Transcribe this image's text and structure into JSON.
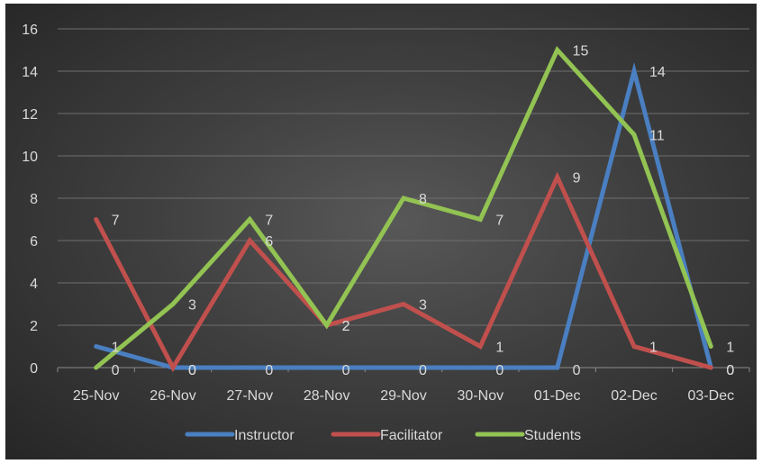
{
  "chart_data": {
    "type": "line",
    "title": "",
    "xlabel": "",
    "ylabel": "",
    "categories": [
      "25-Nov",
      "26-Nov",
      "27-Nov",
      "28-Nov",
      "29-Nov",
      "30-Nov",
      "01-Dec",
      "02-Dec",
      "03-Dec"
    ],
    "ylim": [
      0,
      16
    ],
    "yticks": [
      0,
      2,
      4,
      6,
      8,
      10,
      12,
      14,
      16
    ],
    "grid": true,
    "legend": "bottom",
    "series": [
      {
        "name": "Instructor",
        "color": "#4a7fc1",
        "values": [
          1,
          0,
          0,
          0,
          0,
          0,
          0,
          14,
          0
        ]
      },
      {
        "name": "Facilitator",
        "color": "#c0504d",
        "values": [
          7,
          0,
          6,
          2,
          3,
          1,
          9,
          1,
          0
        ]
      },
      {
        "name": "Students",
        "color": "#92c353",
        "values": [
          0,
          3,
          7,
          2,
          8,
          7,
          15,
          11,
          1
        ]
      }
    ]
  }
}
